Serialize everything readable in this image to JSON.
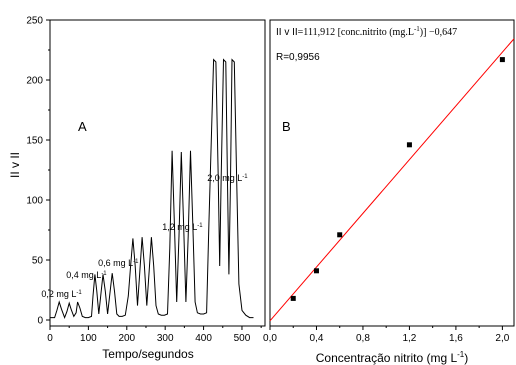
{
  "chart_data": [
    {
      "type": "line",
      "panel_label": "A",
      "xlabel": "Tempo/segundos",
      "ylabel": "II v II",
      "xlim": [
        0,
        560
      ],
      "ylim": [
        -5,
        250
      ],
      "xticks": [
        0,
        100,
        200,
        300,
        400,
        500
      ],
      "yticks": [
        0,
        50,
        100,
        150,
        200,
        250
      ],
      "grid": false,
      "series": [
        {
          "x": [
            0,
            12,
            18,
            24,
            30,
            38,
            44,
            50,
            55,
            62,
            68,
            72,
            78,
            84,
            92,
            100,
            108,
            112,
            117,
            122,
            127,
            132,
            138,
            144,
            150,
            156,
            162,
            168,
            174,
            180,
            188,
            196,
            204,
            210,
            216,
            222,
            228,
            234,
            240,
            246,
            252,
            258,
            264,
            270,
            276,
            282,
            290,
            298,
            306,
            312,
            318,
            324,
            330,
            336,
            342,
            348,
            354,
            360,
            366,
            372,
            378,
            384,
            392,
            400,
            408,
            414,
            420,
            426,
            432,
            438,
            442,
            446,
            452,
            458,
            462,
            466,
            470,
            474,
            480,
            486,
            492,
            500,
            510,
            520,
            530
          ],
          "y": [
            2,
            2,
            8,
            15,
            9,
            2,
            7,
            14,
            9,
            3,
            6,
            15,
            10,
            3,
            2,
            2,
            3,
            20,
            38,
            24,
            5,
            20,
            38,
            24,
            5,
            22,
            39,
            24,
            5,
            3,
            3,
            4,
            20,
            45,
            68,
            45,
            12,
            40,
            69,
            45,
            12,
            40,
            69,
            45,
            12,
            5,
            4,
            4,
            5,
            60,
            141,
            80,
            15,
            70,
            140,
            80,
            15,
            70,
            141,
            80,
            15,
            6,
            5,
            5,
            6,
            80,
            150,
            217,
            215,
            120,
            45,
            120,
            217,
            215,
            120,
            38,
            110,
            217,
            215,
            120,
            30,
            8,
            4,
            2,
            2
          ]
        }
      ],
      "annotations": [
        {
          "text": "0,2 mg L",
          "sup": "-1",
          "x": 30,
          "y": 19
        },
        {
          "text": "0,4 mg L",
          "sup": "-1",
          "x": 95,
          "y": 35
        },
        {
          "text": "0,6 mg L",
          "sup": "-1",
          "x": 178,
          "y": 45
        },
        {
          "text": "1,2 mg L",
          "sup": "-1",
          "x": 345,
          "y": 75
        },
        {
          "text": "2,0 mg L",
          "sup": "-1",
          "x": 462,
          "y": 116
        }
      ]
    },
    {
      "type": "scatter",
      "panel_label": "B",
      "xlabel": "Concentração nitrito (mg L",
      "xlabel_sup": "-1",
      "xlabel_end": ")",
      "ylabel": "",
      "xlim": [
        0,
        2.1
      ],
      "ylim": [
        -5,
        250
      ],
      "xticks": [
        "0,0",
        "0,4",
        "0,8",
        "1,2",
        "1,6",
        "2,0"
      ],
      "xtick_values": [
        0,
        0.4,
        0.8,
        1.2,
        1.6,
        2.0
      ],
      "grid": false,
      "points": {
        "x": [
          0.2,
          0.4,
          0.6,
          1.2,
          2.0
        ],
        "y": [
          18,
          41,
          71,
          146,
          217
        ]
      },
      "fit": {
        "slope": 111.912,
        "intercept": -0.647,
        "color": "#ff0000"
      },
      "equation": {
        "prefix": "II v II",
        "main": "=111,912 [conc.nitrito (mg.L",
        "sup": "-1",
        "end": ")] −0,647"
      },
      "r_text": "R=0,9956"
    }
  ]
}
